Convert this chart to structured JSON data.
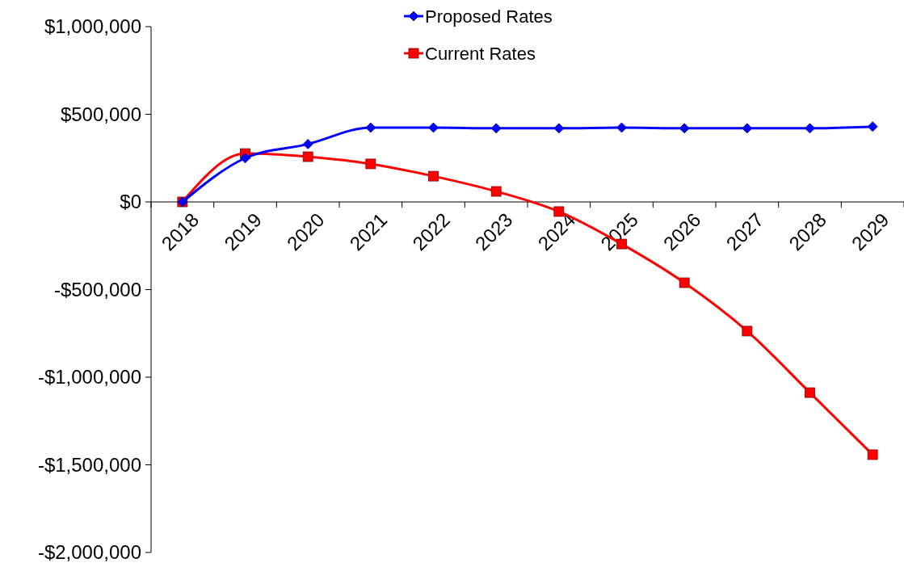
{
  "chart_data": {
    "type": "line",
    "categories": [
      "2018",
      "2019",
      "2020",
      "2021",
      "2022",
      "2023",
      "2024",
      "2025",
      "2026",
      "2027",
      "2028",
      "2029"
    ],
    "series": [
      {
        "name": "Proposed Rates",
        "color": "#0000ff",
        "marker": "diamond",
        "values": [
          0,
          250000,
          330000,
          424000,
          424000,
          420000,
          420000,
          424000,
          420000,
          420000,
          420000,
          430000
        ]
      },
      {
        "name": "Current Rates",
        "color": "#ff0000",
        "marker": "square",
        "values": [
          0,
          276000,
          258000,
          217000,
          147000,
          60000,
          -55000,
          -240000,
          -461000,
          -737000,
          -1088000,
          -1442000
        ]
      }
    ],
    "ylim": [
      -2000000,
      1000000
    ],
    "yticks": [
      {
        "value": -2000000,
        "label": "-$2,000,000"
      },
      {
        "value": -1500000,
        "label": "-$1,500,000"
      },
      {
        "value": -1000000,
        "label": "-$1,000,000"
      },
      {
        "value": -500000,
        "label": "-$500,000"
      },
      {
        "value": 0,
        "label": "$0"
      },
      {
        "value": 500000,
        "label": "$500,000"
      },
      {
        "value": 1000000,
        "label": "$1,000,000"
      }
    ],
    "grid": false,
    "legend": "top",
    "line_style": "solid"
  }
}
